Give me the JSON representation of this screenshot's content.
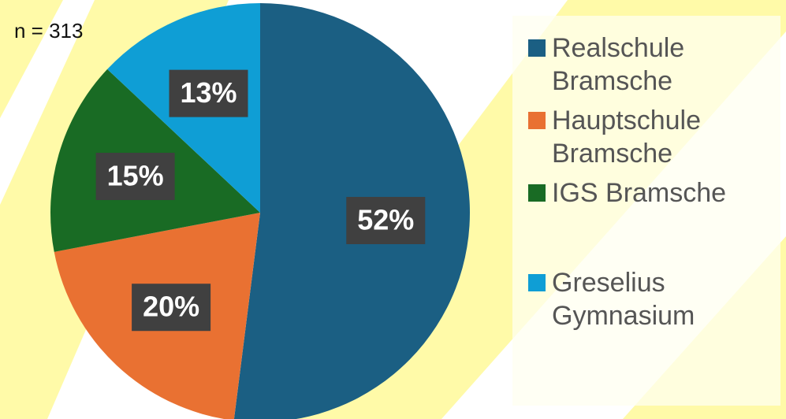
{
  "chart_data": {
    "type": "pie",
    "annotation": "n = 313",
    "categories": [
      "Realschule Bramsche",
      "Hauptschule Bramsche",
      "IGS Bramsche",
      "Greselius Gymnasium"
    ],
    "values": [
      52,
      20,
      15,
      13
    ],
    "value_labels": [
      "52%",
      "20%",
      "15%",
      "13%"
    ],
    "colors": [
      "#1b5f83",
      "#e97132",
      "#196b24",
      "#0f9ed5"
    ],
    "legend": "right"
  }
}
